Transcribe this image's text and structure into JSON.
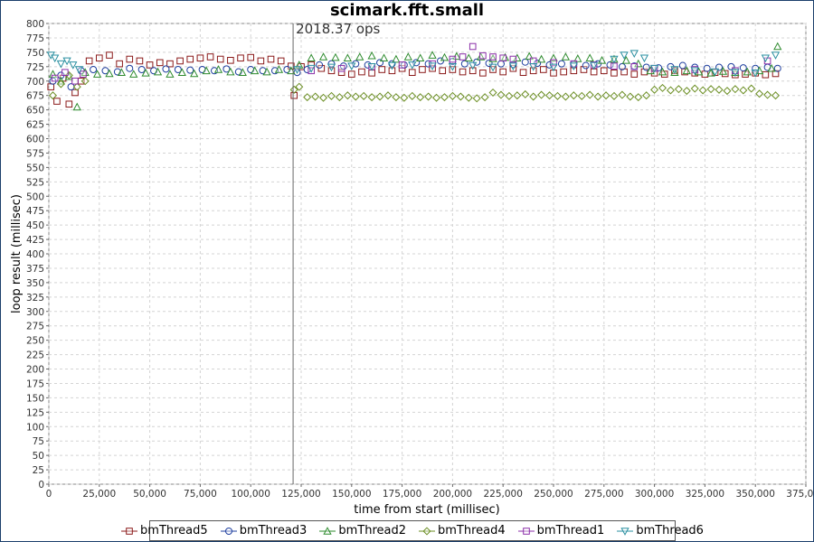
{
  "chart_data": {
    "type": "scatter",
    "title": "scimark.fft.small",
    "annotation": "2018.37 ops",
    "xlabel": "time from start (millisec)",
    "ylabel": "loop result (millisec)",
    "xlim": [
      0,
      375000
    ],
    "ylim": [
      0,
      800
    ],
    "x_ticks": [
      0,
      25000,
      50000,
      75000,
      100000,
      125000,
      150000,
      175000,
      200000,
      225000,
      250000,
      275000,
      300000,
      325000,
      350000,
      375000
    ],
    "x_tick_labels": [
      "0",
      "25,000",
      "50,000",
      "75,000",
      "100,000",
      "125,000",
      "150,000",
      "175,000",
      "200,000",
      "225,000",
      "250,000",
      "275,000",
      "300,000",
      "325,000",
      "350,000",
      "375,000"
    ],
    "y_ticks": [
      0,
      25,
      50,
      75,
      100,
      125,
      150,
      175,
      200,
      225,
      250,
      275,
      300,
      325,
      350,
      375,
      400,
      425,
      450,
      475,
      500,
      525,
      550,
      575,
      600,
      625,
      650,
      675,
      700,
      725,
      750,
      775,
      800
    ],
    "grid": true,
    "legend_position": "bottom",
    "vertical_marker_x": 121000,
    "series": [
      {
        "name": "bmThread5",
        "marker": "square",
        "color": "#8b1a1a",
        "x": [
          1000,
          4000,
          7000,
          10000,
          13000,
          16000,
          20000,
          25000,
          30000,
          35000,
          40000,
          45000,
          50000,
          55000,
          60000,
          65000,
          70000,
          75000,
          80000,
          85000,
          90000,
          95000,
          100000,
          105000,
          110000,
          115000,
          120000,
          121500,
          125000,
          130000,
          135000,
          140000,
          145000,
          150000,
          155000,
          160000,
          165000,
          170000,
          175000,
          180000,
          185000,
          190000,
          195000,
          200000,
          205000,
          210000,
          215000,
          220000,
          225000,
          230000,
          235000,
          240000,
          245000,
          250000,
          255000,
          260000,
          265000,
          270000,
          275000,
          280000,
          285000,
          290000,
          295000,
          300000,
          305000,
          310000,
          315000,
          320000,
          325000,
          330000,
          335000,
          340000,
          345000,
          350000,
          355000,
          360000
        ],
        "y": [
          690,
          665,
          705,
          660,
          680,
          700,
          735,
          740,
          745,
          730,
          738,
          735,
          728,
          732,
          730,
          735,
          738,
          740,
          742,
          738,
          736,
          740,
          741,
          735,
          738,
          735,
          726,
          675,
          725,
          728,
          722,
          718,
          715,
          712,
          716,
          714,
          720,
          718,
          722,
          715,
          720,
          722,
          718,
          720,
          716,
          718,
          714,
          720,
          716,
          722,
          715,
          718,
          720,
          714,
          716,
          718,
          720,
          716,
          718,
          714,
          716,
          712,
          716,
          714,
          712,
          718,
          716,
          714,
          712,
          715,
          713,
          711,
          712,
          714,
          711,
          713
        ]
      },
      {
        "name": "bmThread3",
        "marker": "circle",
        "color": "#1f3f9f",
        "x": [
          2000,
          6000,
          11000,
          16000,
          22000,
          28000,
          34000,
          40000,
          46000,
          52000,
          58000,
          64000,
          70000,
          76000,
          82000,
          88000,
          94000,
          100000,
          106000,
          112000,
          118000,
          123000,
          128000,
          134000,
          140000,
          146000,
          152000,
          158000,
          164000,
          170000,
          176000,
          182000,
          188000,
          194000,
          200000,
          206000,
          212000,
          218000,
          224000,
          230000,
          236000,
          242000,
          248000,
          254000,
          260000,
          266000,
          272000,
          278000,
          284000,
          290000,
          296000,
          302000,
          308000,
          314000,
          320000,
          326000,
          332000,
          338000,
          344000,
          350000,
          356000,
          361000
        ],
        "y": [
          700,
          710,
          690,
          718,
          720,
          718,
          716,
          722,
          720,
          718,
          721,
          720,
          719,
          720,
          718,
          721,
          716,
          720,
          718,
          718,
          720,
          715,
          720,
          728,
          730,
          726,
          730,
          728,
          732,
          730,
          728,
          732,
          730,
          735,
          734,
          730,
          733,
          731,
          730,
          729,
          733,
          731,
          728,
          730,
          729,
          727,
          730,
          728,
          725,
          726,
          724,
          723,
          725,
          727,
          724,
          722,
          724,
          725,
          723,
          722,
          724,
          722
        ]
      },
      {
        "name": "bmThread2",
        "marker": "triangle-up",
        "color": "#2e8b2e",
        "x": [
          2000,
          6000,
          10000,
          14000,
          18000,
          24000,
          30000,
          36000,
          42000,
          48000,
          54000,
          60000,
          66000,
          72000,
          78000,
          84000,
          90000,
          96000,
          102000,
          108000,
          114000,
          120000,
          124000,
          130000,
          136000,
          142000,
          148000,
          154000,
          160000,
          166000,
          172000,
          178000,
          184000,
          190000,
          196000,
          202000,
          208000,
          214000,
          220000,
          226000,
          232000,
          238000,
          244000,
          250000,
          256000,
          262000,
          268000,
          274000,
          280000,
          286000,
          292000,
          298000,
          304000,
          310000,
          316000,
          322000,
          328000,
          334000,
          340000,
          346000,
          352000,
          358000,
          361000
        ],
        "y": [
          712,
          700,
          708,
          655,
          715,
          712,
          713,
          715,
          712,
          714,
          716,
          712,
          715,
          713,
          718,
          720,
          716,
          715,
          718,
          716,
          720,
          718,
          728,
          740,
          742,
          741,
          740,
          742,
          744,
          740,
          738,
          742,
          740,
          745,
          741,
          743,
          740,
          742,
          739,
          741,
          740,
          743,
          738,
          740,
          742,
          739,
          740,
          736,
          738,
          736,
          730,
          718,
          716,
          715,
          718,
          716,
          714,
          717,
          715,
          716,
          718,
          722,
          760
        ]
      },
      {
        "name": "bmThread4",
        "marker": "diamond",
        "color": "#6b8e23",
        "x": [
          2000,
          6000,
          10000,
          14000,
          18000,
          121500,
          124000,
          128000,
          132000,
          136000,
          140000,
          144000,
          148000,
          152000,
          156000,
          160000,
          164000,
          168000,
          172000,
          176000,
          180000,
          184000,
          188000,
          192000,
          196000,
          200000,
          204000,
          208000,
          212000,
          216000,
          220000,
          224000,
          228000,
          232000,
          236000,
          240000,
          244000,
          248000,
          252000,
          256000,
          260000,
          264000,
          268000,
          272000,
          276000,
          280000,
          284000,
          288000,
          292000,
          296000,
          300000,
          304000,
          308000,
          312000,
          316000,
          320000,
          324000,
          328000,
          332000,
          336000,
          340000,
          344000,
          348000,
          352000,
          356000,
          360000
        ],
        "y": [
          675,
          695,
          710,
          690,
          700,
          685,
          690,
          672,
          673,
          671,
          674,
          672,
          675,
          673,
          674,
          672,
          673,
          675,
          672,
          671,
          674,
          672,
          673,
          671,
          672,
          674,
          673,
          671,
          670,
          672,
          680,
          676,
          674,
          675,
          677,
          673,
          676,
          675,
          674,
          673,
          675,
          674,
          676,
          673,
          675,
          674,
          676,
          673,
          672,
          675,
          685,
          688,
          684,
          686,
          683,
          687,
          684,
          686,
          685,
          683,
          686,
          684,
          687,
          678,
          676,
          675
        ]
      },
      {
        "name": "bmThread1",
        "marker": "square",
        "color": "#8b2fa8",
        "x": [
          3000,
          8000,
          13000,
          17000,
          130000,
          145000,
          160000,
          175000,
          190000,
          200000,
          205000,
          210000,
          215000,
          220000,
          225000,
          230000,
          240000,
          250000,
          260000,
          270000,
          280000,
          290000,
          300000,
          320000,
          340000,
          356000
        ],
        "y": [
          705,
          715,
          700,
          712,
          718,
          722,
          725,
          728,
          730,
          738,
          742,
          760,
          744,
          742,
          740,
          738,
          735,
          732,
          730,
          728,
          726,
          725,
          722,
          720,
          718,
          735
        ]
      },
      {
        "name": "bmThread6",
        "marker": "triangle-down",
        "color": "#2a8fa0",
        "x": [
          1000,
          3000,
          6000,
          9000,
          12000,
          15000,
          123000,
          130000,
          140000,
          150000,
          160000,
          170000,
          180000,
          190000,
          200000,
          210000,
          220000,
          230000,
          240000,
          250000,
          260000,
          270000,
          280000,
          285000,
          290000,
          295000,
          300000,
          310000,
          320000,
          330000,
          340000,
          350000,
          355000,
          360000
        ],
        "y": [
          745,
          740,
          730,
          735,
          728,
          720,
          720,
          722,
          724,
          726,
          725,
          727,
          728,
          726,
          725,
          727,
          724,
          726,
          725,
          724,
          726,
          727,
          738,
          745,
          748,
          740,
          722,
          720,
          718,
          716,
          715,
          714,
          740,
          745
        ]
      }
    ]
  }
}
